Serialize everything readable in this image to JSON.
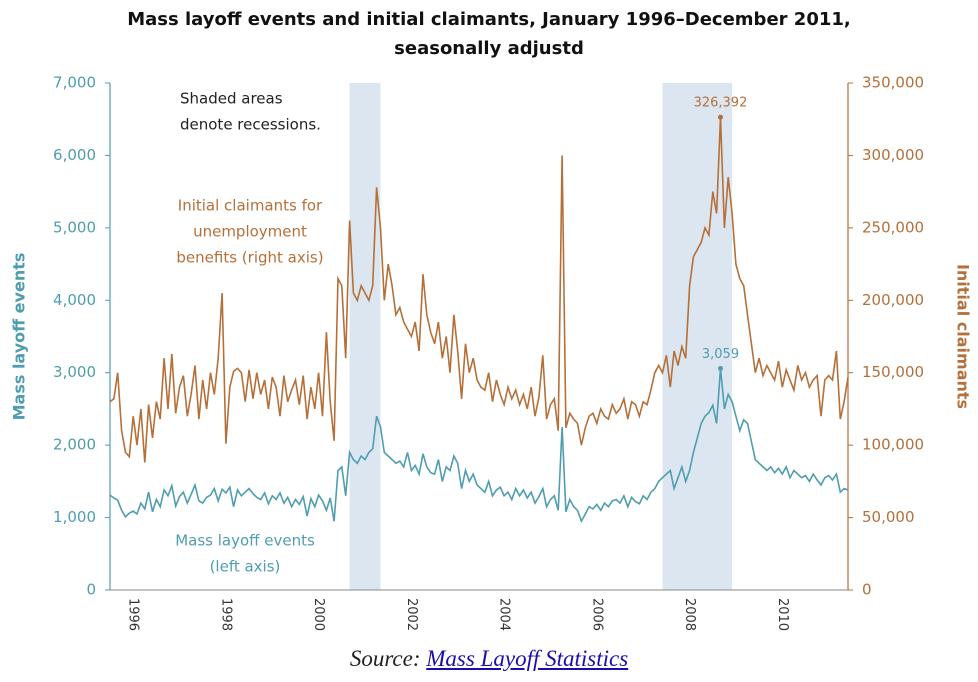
{
  "chart_data": {
    "type": "line",
    "title": [
      "Mass layoff events and initial claimants, January 1996–December 2011,",
      "seasonally adjustd"
    ],
    "ylabel": "Mass layoff events",
    "y2label": "Initial claimants",
    "annotations": {
      "recession_note": [
        "Shaded areas",
        "denote recessions."
      ],
      "claimants_note": [
        "Initial claimants  for",
        "unemployment",
        "benefits (right axis)"
      ],
      "layoff_note": [
        "Mass layoff events",
        "(left axis)"
      ]
    },
    "source_prefix": "Source:",
    "source_link": "Mass Layoff Statistics",
    "categories": [
      null,
      null,
      null,
      null,
      null,
      null,
      "1996",
      null,
      null,
      null,
      null,
      null,
      null,
      null,
      null,
      null,
      null,
      null,
      null,
      null,
      null,
      null,
      null,
      null,
      null,
      null,
      null,
      null,
      null,
      null,
      "1998",
      null,
      null,
      null,
      null,
      null,
      null,
      null,
      null,
      null,
      null,
      null,
      null,
      null,
      null,
      null,
      null,
      null,
      null,
      null,
      null,
      null,
      null,
      null,
      "2000",
      null,
      null,
      null,
      null,
      null,
      null,
      null,
      null,
      null,
      null,
      null,
      null,
      null,
      null,
      null,
      null,
      null,
      null,
      null,
      null,
      null,
      null,
      null,
      "2002",
      null,
      null,
      null,
      null,
      null,
      null,
      null,
      null,
      null,
      null,
      null,
      null,
      null,
      null,
      null,
      null,
      null,
      null,
      null,
      null,
      null,
      null,
      null,
      "2004",
      null,
      null,
      null,
      null,
      null,
      null,
      null,
      null,
      null,
      null,
      null,
      null,
      null,
      null,
      null,
      null,
      null,
      null,
      null,
      null,
      null,
      null,
      null,
      "2006",
      null,
      null,
      null,
      null,
      null,
      null,
      null,
      null,
      null,
      null,
      null,
      null,
      null,
      null,
      null,
      null,
      null,
      null,
      null,
      null,
      null,
      null,
      null,
      "2008",
      null,
      null,
      null,
      null,
      null,
      null,
      null,
      null,
      null,
      null,
      null,
      null,
      null,
      null,
      null,
      null,
      null,
      null,
      null,
      null,
      null,
      null,
      null,
      "2010",
      null,
      null,
      null,
      null,
      null,
      null,
      null,
      null,
      null,
      null,
      null,
      null,
      null,
      null,
      null,
      null,
      null
    ],
    "recessions": [
      {
        "start": 62,
        "end": 70
      },
      {
        "start": 143,
        "end": 161
      }
    ],
    "recession_color": "#dce6f0",
    "ylim": [
      0,
      7000
    ],
    "yticks": [
      0,
      {
        "value": 1000,
        "label": "1,000"
      },
      {
        "value": 2000,
        "label": "2,000"
      },
      {
        "value": 3000,
        "label": "3,000"
      },
      {
        "value": 4000,
        "label": "4,000"
      },
      {
        "value": 5000,
        "label": "5,000"
      },
      {
        "value": 6000,
        "label": "6,000"
      },
      {
        "value": 7000,
        "label": "7,000"
      }
    ],
    "y2lim": [
      0,
      350000
    ],
    "y2ticks": [
      0,
      {
        "value": 50000,
        "label": "50,000"
      },
      {
        "value": 100000,
        "label": "100,000"
      },
      {
        "value": 150000,
        "label": "150,000"
      },
      {
        "value": 200000,
        "label": "200,000"
      },
      {
        "value": 250000,
        "label": "250,000"
      },
      {
        "value": 300000,
        "label": "300,000"
      },
      {
        "value": 350000,
        "label": "350,000"
      }
    ],
    "series": [
      {
        "name": "Mass layoff events",
        "color": "#4f9db0",
        "axis": "y",
        "peak": {
          "index": 158,
          "label": "3,059"
        },
        "values": [
          1310,
          1270,
          1240,
          1100,
          1010,
          1060,
          1090,
          1050,
          1200,
          1120,
          1350,
          1080,
          1250,
          1150,
          1380,
          1300,
          1440,
          1160,
          1290,
          1350,
          1200,
          1320,
          1450,
          1230,
          1200,
          1280,
          1310,
          1400,
          1230,
          1390,
          1340,
          1420,
          1150,
          1380,
          1300,
          1350,
          1400,
          1330,
          1280,
          1250,
          1340,
          1190,
          1300,
          1250,
          1340,
          1200,
          1280,
          1150,
          1250,
          1180,
          1290,
          1020,
          1260,
          1150,
          1310,
          1230,
          1100,
          1270,
          950,
          1650,
          1700,
          1300,
          1900,
          1800,
          1750,
          1850,
          1800,
          1900,
          1950,
          2400,
          2250,
          1900,
          1850,
          1800,
          1750,
          1780,
          1700,
          1900,
          1650,
          1720,
          1600,
          1880,
          1700,
          1620,
          1600,
          1800,
          1500,
          1700,
          1650,
          1850,
          1750,
          1400,
          1650,
          1500,
          1600,
          1450,
          1400,
          1350,
          1500,
          1300,
          1380,
          1420,
          1300,
          1350,
          1250,
          1400,
          1300,
          1380,
          1270,
          1350,
          1200,
          1290,
          1400,
          1150,
          1250,
          1300,
          1100,
          2250,
          1080,
          1250,
          1150,
          1100,
          950,
          1050,
          1150,
          1120,
          1180,
          1100,
          1200,
          1150,
          1230,
          1250,
          1200,
          1300,
          1150,
          1280,
          1220,
          1190,
          1300,
          1250,
          1350,
          1400,
          1500,
          1550,
          1600,
          1650,
          1400,
          1550,
          1700,
          1500,
          1650,
          1900,
          2100,
          2300,
          2400,
          2450,
          2550,
          2300,
          3059,
          2500,
          2700,
          2600,
          2400,
          2200,
          2350,
          2300,
          2050,
          1800,
          1750,
          1700,
          1650,
          1700,
          1620,
          1680,
          1600,
          1700,
          1550,
          1650,
          1600,
          1550,
          1580,
          1500,
          1600,
          1520,
          1450,
          1550,
          1580,
          1520,
          1600,
          1350,
          1400,
          1380
        ]
      },
      {
        "name": "Initial claimants",
        "color": "#b5703a",
        "axis": "y2",
        "peak": {
          "index": 158,
          "label": "326,392"
        },
        "values": [
          130000,
          132000,
          150000,
          110000,
          95000,
          92000,
          120000,
          100000,
          125000,
          88000,
          128000,
          105000,
          130000,
          118000,
          160000,
          125000,
          163000,
          122000,
          140000,
          148000,
          120000,
          135000,
          155000,
          118000,
          145000,
          125000,
          150000,
          135000,
          160000,
          205000,
          101000,
          140000,
          151000,
          153000,
          150000,
          130000,
          152000,
          132000,
          150000,
          135000,
          145000,
          125000,
          147000,
          140000,
          120000,
          148000,
          130000,
          138000,
          145000,
          128000,
          148000,
          118000,
          140000,
          125000,
          150000,
          120000,
          178000,
          130000,
          103000,
          215000,
          210000,
          160000,
          255000,
          205000,
          200000,
          210000,
          205000,
          200000,
          210000,
          278000,
          250000,
          200000,
          225000,
          210000,
          190000,
          195000,
          185000,
          180000,
          175000,
          185000,
          165000,
          218000,
          190000,
          178000,
          170000,
          185000,
          160000,
          175000,
          150000,
          190000,
          165000,
          132000,
          170000,
          150000,
          160000,
          145000,
          140000,
          138000,
          150000,
          130000,
          145000,
          135000,
          128000,
          140000,
          132000,
          138000,
          128000,
          135000,
          125000,
          140000,
          120000,
          133000,
          162000,
          118000,
          128000,
          132000,
          110000,
          300000,
          112000,
          122000,
          118000,
          115000,
          100000,
          112000,
          120000,
          122000,
          115000,
          125000,
          120000,
          118000,
          128000,
          122000,
          125000,
          132000,
          118000,
          130000,
          128000,
          120000,
          130000,
          128000,
          138000,
          150000,
          155000,
          150000,
          162000,
          140000,
          165000,
          155000,
          168000,
          160000,
          210000,
          230000,
          235000,
          240000,
          250000,
          245000,
          275000,
          260000,
          326392,
          250000,
          285000,
          260000,
          225000,
          215000,
          210000,
          190000,
          170000,
          150000,
          160000,
          148000,
          155000,
          150000,
          145000,
          158000,
          140000,
          152000,
          145000,
          138000,
          155000,
          145000,
          150000,
          140000,
          145000,
          148000,
          120000,
          145000,
          148000,
          145000,
          165000,
          118000,
          130000,
          147000
        ]
      }
    ]
  }
}
